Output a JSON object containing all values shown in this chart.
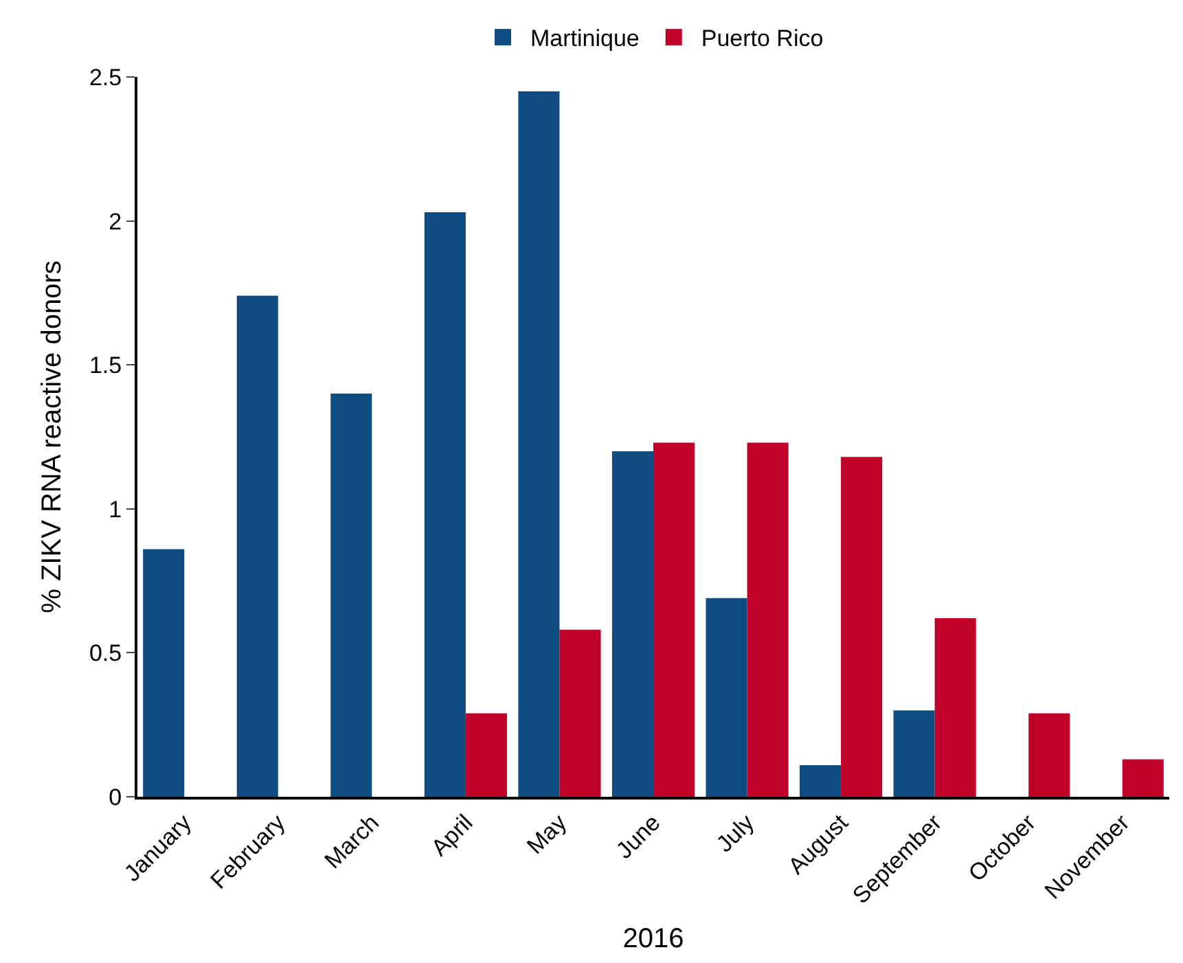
{
  "chart_data": {
    "type": "bar",
    "xlabel": "2016",
    "ylabel": "% ZIKV RNA reactive donors",
    "categories": [
      "January",
      "February",
      "March",
      "April",
      "May",
      "June",
      "July",
      "August",
      "September",
      "October",
      "November"
    ],
    "series": [
      {
        "name": "Martinique",
        "color": "#0f4c81",
        "values": [
          0.86,
          1.74,
          1.4,
          2.03,
          2.45,
          1.2,
          0.69,
          0.11,
          0.3,
          null,
          null
        ]
      },
      {
        "name": "Puerto Rico",
        "color": "#c0012a",
        "values": [
          null,
          null,
          null,
          0.29,
          0.58,
          1.23,
          1.23,
          1.18,
          0.62,
          0.29,
          0.13
        ]
      }
    ],
    "ylim": [
      0,
      2.5
    ],
    "yticks": [
      0,
      0.5,
      1,
      1.5,
      2,
      2.5
    ],
    "legend": "top"
  }
}
